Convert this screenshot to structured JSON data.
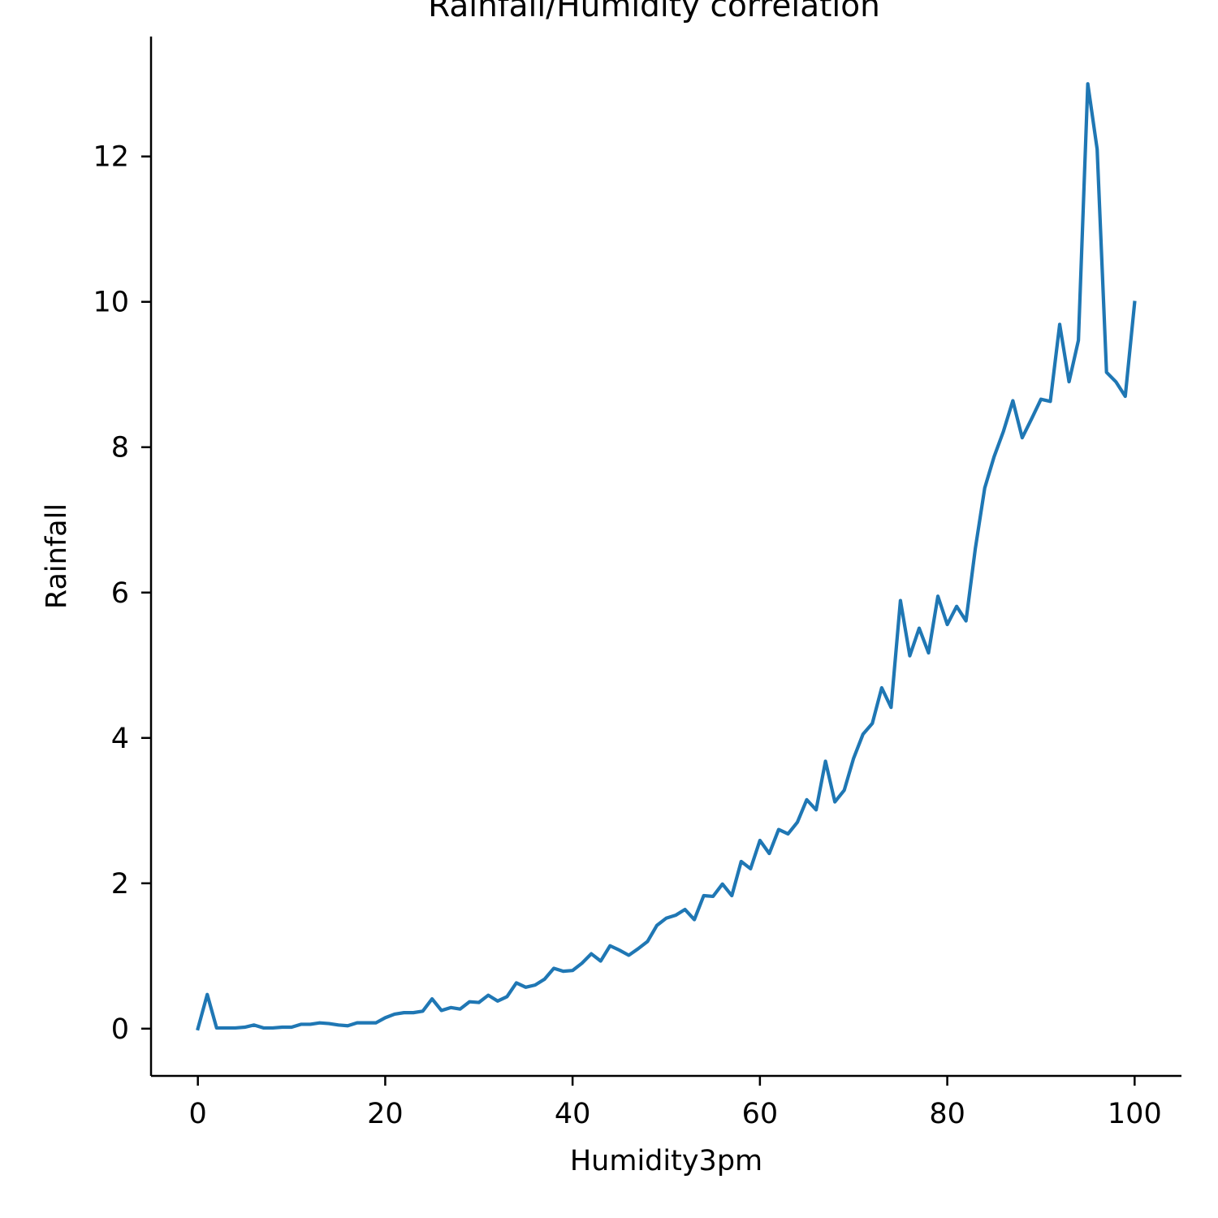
{
  "chart_data": {
    "type": "line",
    "title": "Rainfall/Humidity correlation",
    "xlabel": "Humidity3pm",
    "ylabel": "Rainfall",
    "xlim": [
      -5,
      105
    ],
    "ylim": [
      -0.65,
      13.65
    ],
    "xticks": [
      0,
      20,
      40,
      60,
      80,
      100
    ],
    "yticks": [
      0,
      2,
      4,
      6,
      8,
      10,
      12
    ],
    "grid": false,
    "legend": "none",
    "series": [
      {
        "color": "#1f77b4",
        "x": [
          0,
          1,
          2,
          3,
          4,
          5,
          6,
          7,
          8,
          9,
          10,
          11,
          12,
          13,
          14,
          15,
          16,
          17,
          18,
          19,
          20,
          21,
          22,
          23,
          24,
          25,
          26,
          27,
          28,
          29,
          30,
          31,
          32,
          33,
          34,
          35,
          36,
          37,
          38,
          39,
          40,
          41,
          42,
          43,
          44,
          45,
          46,
          47,
          48,
          49,
          50,
          51,
          52,
          53,
          54,
          55,
          56,
          57,
          58,
          59,
          60,
          61,
          62,
          63,
          64,
          65,
          66,
          67,
          68,
          69,
          70,
          71,
          72,
          73,
          74,
          75,
          76,
          77,
          78,
          79,
          80,
          81,
          82,
          83,
          84,
          85,
          86,
          87,
          88,
          89,
          90,
          91,
          92,
          93,
          94,
          95,
          96,
          97,
          98,
          99,
          100
        ],
        "y": [
          0.0,
          0.47,
          0.01,
          0.01,
          0.01,
          0.02,
          0.05,
          0.01,
          0.01,
          0.02,
          0.02,
          0.06,
          0.06,
          0.08,
          0.07,
          0.05,
          0.04,
          0.08,
          0.08,
          0.08,
          0.15,
          0.2,
          0.22,
          0.22,
          0.24,
          0.41,
          0.25,
          0.29,
          0.27,
          0.37,
          0.36,
          0.46,
          0.38,
          0.44,
          0.63,
          0.57,
          0.6,
          0.68,
          0.83,
          0.79,
          0.8,
          0.9,
          1.03,
          0.93,
          1.14,
          1.08,
          1.01,
          1.1,
          1.2,
          1.42,
          1.52,
          1.56,
          1.64,
          1.5,
          1.83,
          1.82,
          1.99,
          1.83,
          2.3,
          2.2,
          2.59,
          2.41,
          2.74,
          2.68,
          2.84,
          3.15,
          3.01,
          3.68,
          3.12,
          3.28,
          3.72,
          4.05,
          4.2,
          4.69,
          4.42,
          5.89,
          5.13,
          5.51,
          5.17,
          5.95,
          5.56,
          5.81,
          5.61,
          6.61,
          7.44,
          7.87,
          8.22,
          8.64,
          8.13,
          8.39,
          8.66,
          8.63,
          9.69,
          8.9,
          9.47,
          13.0,
          12.1,
          9.03,
          8.9,
          8.7,
          9.99
        ]
      }
    ]
  }
}
